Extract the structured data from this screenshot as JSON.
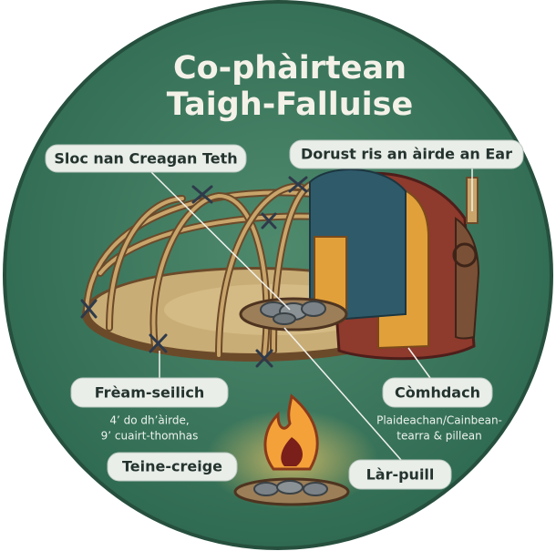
{
  "title": {
    "lines": [
      "Co-phàirtean",
      "Taigh-Falluise"
    ]
  },
  "labels": [
    {
      "text": "Sloc nan Creagan Teth"
    },
    {
      "text": "Dorust ris an àirde an Ear"
    },
    {
      "text": "Frèam-seilich",
      "note": [
        "4’ do dh’àirde,",
        "9’ cuairt-thomhas"
      ]
    },
    {
      "text": "Còmhdach",
      "note": [
        "Plaideachan/Cainbean-",
        "tearra & pillean"
      ]
    },
    {
      "text": "Teine-creige"
    },
    {
      "text": "Làr-puill"
    }
  ]
}
